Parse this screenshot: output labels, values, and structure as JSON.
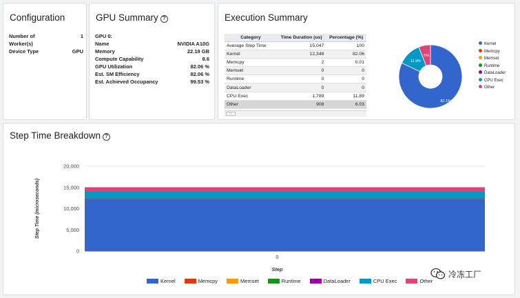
{
  "config": {
    "title": "Configuration",
    "rows": [
      {
        "key": "Number of Worker(s)",
        "value": "1"
      },
      {
        "key": "Device Type",
        "value": "GPU"
      }
    ]
  },
  "gpu": {
    "title": "GPU Summary",
    "help_glyph": "?",
    "rows": [
      {
        "key": "GPU 0:",
        "value": ""
      },
      {
        "key": "Name",
        "value": "NVIDIA A10G"
      },
      {
        "key": "Memory",
        "value": "22.19 GB"
      },
      {
        "key": "Compute Capability",
        "value": "8.6"
      },
      {
        "key": "GPU Utilization",
        "value": "82.06 %"
      },
      {
        "key": "Est. SM Efficiency",
        "value": "82.06 %"
      },
      {
        "key": "Est. Achieved Occupancy",
        "value": "99.53 %"
      }
    ]
  },
  "exec": {
    "title": "Execution Summary",
    "headers": [
      "Category",
      "Time Duration (us)",
      "Percentage (%)"
    ],
    "rows": [
      [
        "Average Step Time",
        "15,047",
        "100"
      ],
      [
        "Kernel",
        "12,348",
        "82.06"
      ],
      [
        "Memcpy",
        "2",
        "0.01"
      ],
      [
        "Memset",
        "0",
        "0"
      ],
      [
        "Runtime",
        "0",
        "0"
      ],
      [
        "DataLoader",
        "0",
        "0"
      ],
      [
        "CPU Exec",
        "1,789",
        "11.89"
      ],
      [
        "Other",
        "908",
        "6.03"
      ]
    ],
    "nav_label": "‹ ›"
  },
  "chart_data": [
    {
      "type": "pie",
      "donut": true,
      "labels": [
        "Kernel",
        "Memcpy",
        "Memset",
        "Runtime",
        "DataLoader",
        "CPU Exec",
        "Other"
      ],
      "values": [
        82.06,
        0.01,
        0,
        0,
        0,
        11.89,
        6.03
      ],
      "slice_labels": [
        "82.1%",
        "",
        "",
        "",
        "",
        "11.9%",
        "6%"
      ],
      "colors": [
        "#3366cc",
        "#dc3912",
        "#ff9900",
        "#109618",
        "#990099",
        "#0099c6",
        "#dd4477"
      ],
      "legend": "right"
    },
    {
      "type": "area",
      "stacked": true,
      "title": "Step Time Breakdown",
      "xlabel": "Step",
      "ylabel": "Step Time (microseconds)",
      "categories": [
        "0"
      ],
      "ylim": [
        0,
        20000
      ],
      "yticks": [
        "0",
        "5,000",
        "10,000",
        "15,000",
        "20,000"
      ],
      "series": [
        {
          "name": "Kernel",
          "values": [
            12348
          ],
          "color": "#3366cc"
        },
        {
          "name": "Memcpy",
          "values": [
            2
          ],
          "color": "#dc3912"
        },
        {
          "name": "Memset",
          "values": [
            0
          ],
          "color": "#ff9900"
        },
        {
          "name": "Runtime",
          "values": [
            0
          ],
          "color": "#109618"
        },
        {
          "name": "DataLoader",
          "values": [
            0
          ],
          "color": "#990099"
        },
        {
          "name": "CPU Exec",
          "values": [
            1789
          ],
          "color": "#0099c6"
        },
        {
          "name": "Other",
          "values": [
            908
          ],
          "color": "#dd4477"
        }
      ],
      "legend": "bottom"
    }
  ],
  "step": {
    "title": "Step Time Breakdown",
    "help_glyph": "?"
  },
  "watermark": {
    "text": "冷冻工厂"
  }
}
